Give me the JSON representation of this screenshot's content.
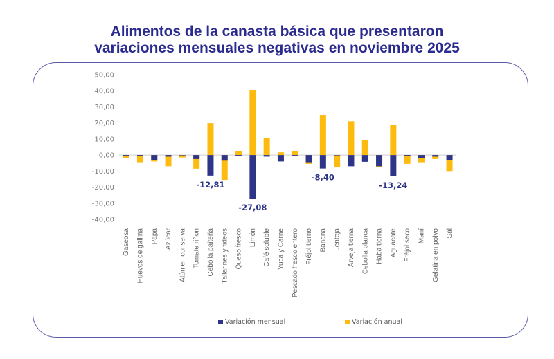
{
  "chart_data": {
    "type": "bar",
    "title": "Alimentos de la canasta básica que presentaron variaciones mensuales negativas en noviembre 2025",
    "title_lines": [
      "Alimentos de la canasta básica que presentaron",
      "variaciones mensuales negativas en noviembre 2025"
    ],
    "xlabel": "",
    "ylabel": "",
    "ylim": [
      -40,
      50
    ],
    "yticks": [
      50,
      40,
      30,
      20,
      10,
      0,
      -10,
      -20,
      -30,
      -40
    ],
    "ytick_labels": [
      "50,00",
      "40,00",
      "30,00",
      "20,00",
      "10,00",
      "0,00",
      "-10,00",
      "-20,00",
      "-30,00",
      "-40,00"
    ],
    "grid": false,
    "legend_position": "bottom",
    "categories": [
      "Gaseosa",
      "Huevos de gallina",
      "Papa",
      "Azúcar",
      "Atún en conserva",
      "Tomate riñon",
      "Cebolla paiteña",
      "Tallarines y fideos",
      "Queso fresco",
      "Limón",
      "Café soluble",
      "Yuca y Carne",
      "Pescado fresco entero",
      "Fréjol tierno",
      "Banana",
      "Lenteja",
      "Arveja tierna",
      "Cebolla blanca",
      "Haba tierna",
      "Aguacate",
      "Fréjol seco",
      "Maní",
      "Gelatina en polvo",
      "Sal"
    ],
    "series": [
      {
        "name": "Variación mensual",
        "color": "#2e3588",
        "values": [
          -0.8,
          -0.8,
          -3.0,
          -1.0,
          -0.2,
          -2.5,
          -12.81,
          -3.5,
          -0.5,
          -27.08,
          -1.0,
          -4.0,
          -0.5,
          -4.5,
          -8.4,
          -0.2,
          -7.0,
          -4.2,
          -7.0,
          -13.24,
          -0.8,
          -2.0,
          -1.0,
          -3.0
        ]
      },
      {
        "name": "Variación anual",
        "color": "#fdbb0f",
        "values": [
          -2.0,
          -4.5,
          -4.0,
          -7.0,
          -1.5,
          -8.5,
          19.8,
          -15.5,
          2.5,
          40.5,
          10.8,
          1.7,
          2.5,
          -5.5,
          25.0,
          -7.5,
          21.0,
          9.5,
          -7.5,
          19.0,
          -5.5,
          -4.5,
          -2.5,
          -10.0
        ]
      }
    ],
    "annotations": [
      {
        "category": "Cebolla paiteña",
        "series": "Variación mensual",
        "text": "-12,81"
      },
      {
        "category": "Limón",
        "series": "Variación mensual",
        "text": "-27,08"
      },
      {
        "category": "Banana",
        "series": "Variación mensual",
        "text": "-8,40"
      },
      {
        "category": "Aguacate",
        "series": "Variación mensual",
        "text": "-13,24"
      }
    ]
  },
  "legend": {
    "items": [
      {
        "label": "Variación mensual",
        "color": "#2e3588"
      },
      {
        "label": "Variación anual",
        "color": "#fdbb0f"
      }
    ]
  }
}
